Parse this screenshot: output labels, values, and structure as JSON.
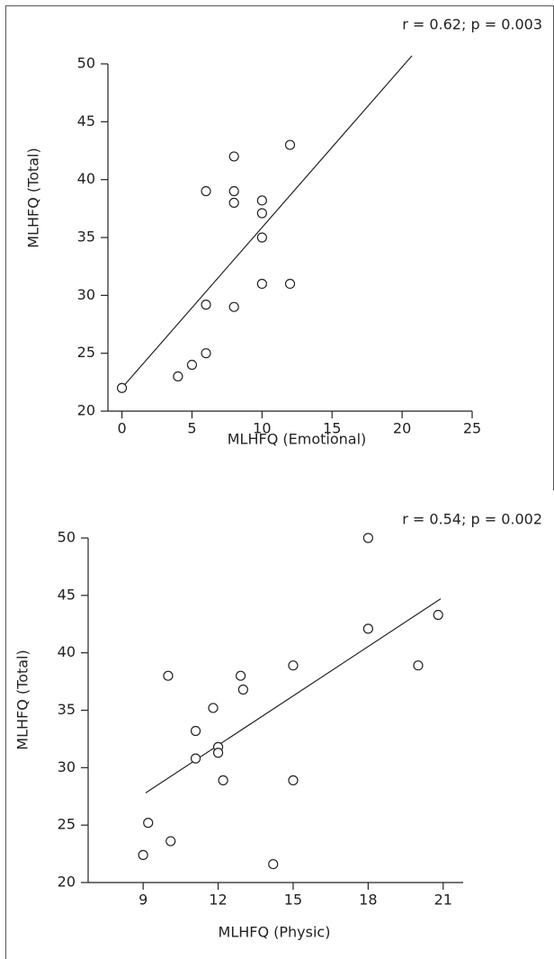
{
  "chart_data": [
    {
      "type": "scatter",
      "annotation": "r = 0.62; p = 0.003",
      "x_label": "MLHFQ (Emotional)",
      "y_label": "MLHFQ (Total)",
      "x": [
        0,
        4,
        5,
        6,
        6,
        6,
        8,
        8,
        8,
        8,
        10,
        10,
        10,
        10,
        12,
        12
      ],
      "y": [
        22,
        23,
        24,
        25,
        29.2,
        39,
        42,
        39,
        38,
        29,
        38.2,
        37.1,
        35,
        31,
        43,
        31
      ],
      "fit_line": {
        "x": [
          0,
          20.7
        ],
        "y": [
          22,
          50.7
        ]
      },
      "xlim": [
        -1,
        25
      ],
      "ylim": [
        20,
        50
      ],
      "xticks": [
        0,
        5,
        10,
        15,
        20,
        25
      ],
      "yticks": [
        20,
        25,
        30,
        35,
        40,
        45,
        50
      ]
    },
    {
      "type": "scatter",
      "annotation": "r = 0.54; p = 0.002",
      "x_label": "MLHFQ (Physic)",
      "y_label": "MLHFQ (Total)",
      "x": [
        9,
        9.2,
        10.1,
        10,
        11.1,
        11.1,
        11.8,
        12,
        12,
        12.2,
        12.9,
        13,
        15,
        15,
        14.2,
        18,
        18,
        20,
        20.8
      ],
      "y": [
        22.4,
        25.2,
        23.6,
        38,
        33.2,
        30.8,
        35.2,
        31.8,
        31.3,
        28.9,
        38,
        36.8,
        38.9,
        28.9,
        21.6,
        50,
        42.1,
        38.9,
        43.3
      ],
      "fit_line": {
        "x": [
          9.1,
          20.9
        ],
        "y": [
          27.8,
          44.7
        ]
      },
      "xlim": [
        6.8,
        21.8
      ],
      "ylim": [
        20,
        50
      ],
      "xticks": [
        9,
        12,
        15,
        18,
        21
      ],
      "yticks": [
        20,
        25,
        30,
        35,
        40,
        45,
        50
      ]
    }
  ]
}
